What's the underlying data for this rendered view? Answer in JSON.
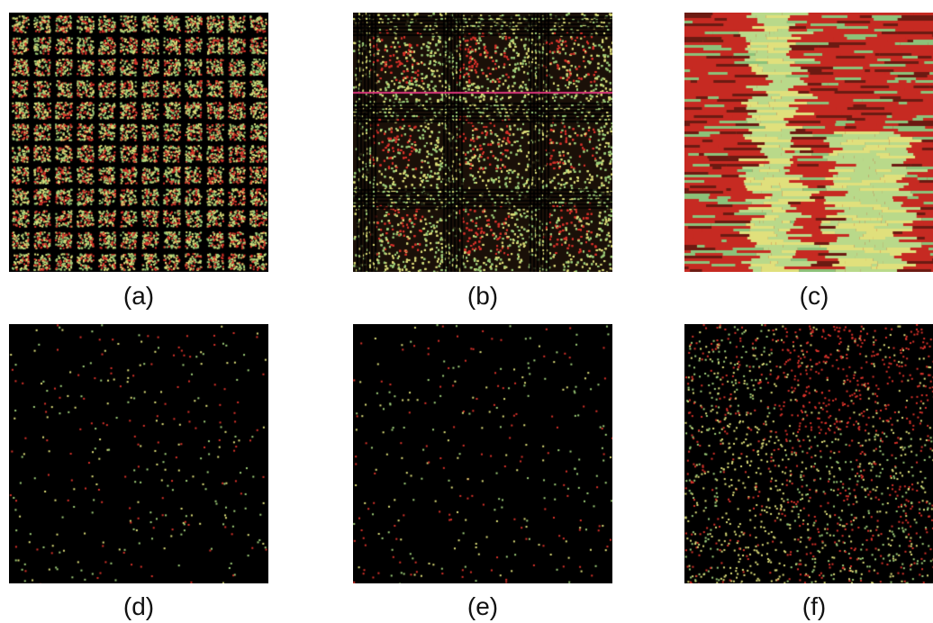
{
  "figure": {
    "panels": [
      {
        "id": "a",
        "label": "(a)",
        "kind": "tiled-grid"
      },
      {
        "id": "b",
        "label": "(b)",
        "kind": "coarse-grid"
      },
      {
        "id": "c",
        "label": "(c)",
        "kind": "scrambled-photo"
      },
      {
        "id": "d",
        "label": "(d)",
        "kind": "sparse-dots"
      },
      {
        "id": "e",
        "label": "(e)",
        "kind": "sparse-dots"
      },
      {
        "id": "f",
        "label": "(f)",
        "kind": "dense-dots"
      }
    ]
  },
  "colors": {
    "red": "#d9322a",
    "green": "#9fcf7a",
    "yellow": "#dfe07a",
    "background": "#000000"
  }
}
